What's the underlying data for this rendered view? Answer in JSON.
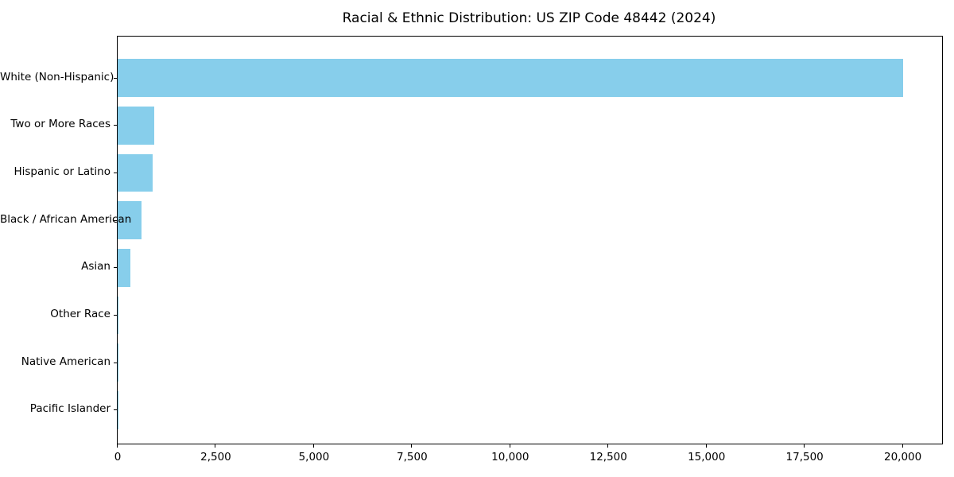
{
  "chart_data": {
    "type": "bar",
    "orientation": "horizontal",
    "title": "Racial & Ethnic Distribution: US ZIP Code 48442 (2024)",
    "categories": [
      "White (Non-Hispanic)",
      "Two or More Races",
      "Hispanic or Latino",
      "Black / African American",
      "Asian",
      "Other Race",
      "Native American",
      "Pacific Islander"
    ],
    "values": [
      20000,
      930,
      900,
      600,
      320,
      20,
      10,
      5
    ],
    "xlabel": "",
    "ylabel": "",
    "xlim": [
      0,
      21000
    ],
    "x_ticks": [
      0,
      2500,
      5000,
      7500,
      10000,
      12500,
      15000,
      17500,
      20000
    ],
    "x_tick_labels": [
      "0",
      "2,500",
      "5,000",
      "7,500",
      "10,000",
      "12,500",
      "15,000",
      "17,500",
      "20,000"
    ],
    "bar_color": "#87CEEB",
    "grid": false,
    "legend": null
  }
}
